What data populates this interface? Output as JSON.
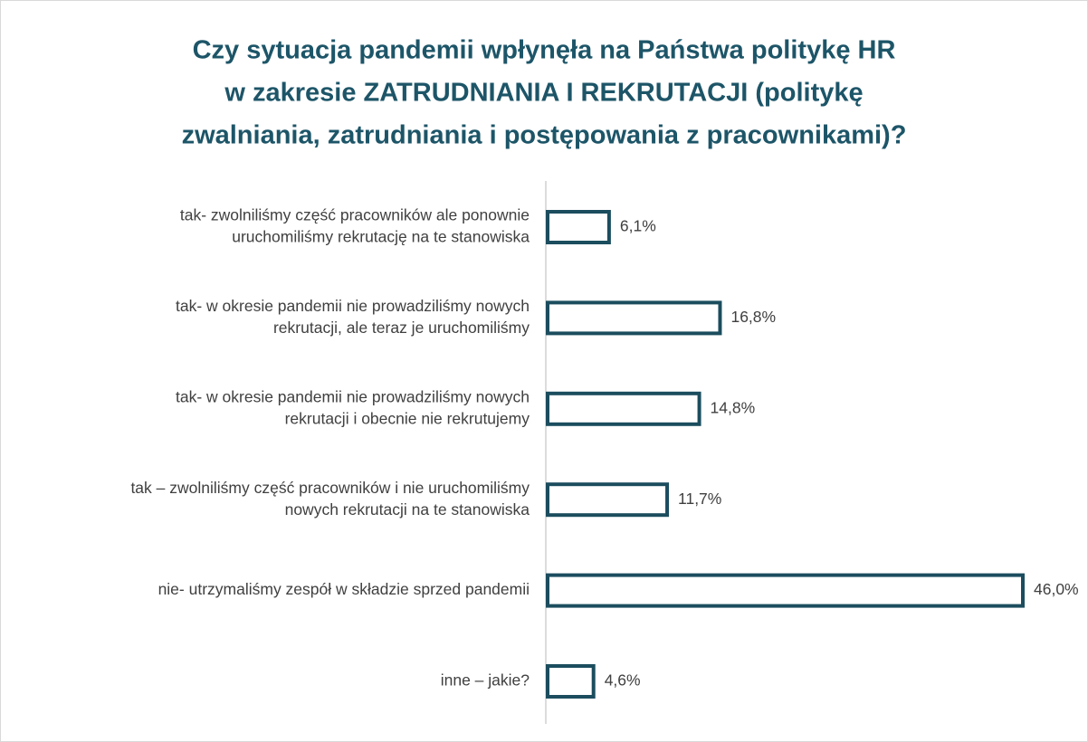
{
  "chart_data": {
    "type": "barh",
    "title": [
      "Czy sytuacja pandemii wpłynęła na Państwa politykę HR",
      "w zakresie ZATRUDNIANIA I REKRUTACJI (politykę",
      "zwalniania, zatrudniania i postępowania z pracownikami)?"
    ],
    "categories": [
      [
        "tak- zwolniliśmy część pracowników ale ponownie",
        "uruchomiliśmy rekrutację na te stanowiska"
      ],
      [
        "tak- w okresie pandemii nie prowadziliśmy nowych",
        "rekrutacji, ale teraz je uruchomiliśmy"
      ],
      [
        "tak- w okresie pandemii nie prowadziliśmy nowych",
        "rekrutacji i obecnie nie rekrutujemy"
      ],
      [
        "tak – zwolniliśmy część pracowników i nie uruchomiliśmy",
        "nowych rekrutacji na te stanowiska"
      ],
      [
        "nie- utrzymaliśmy zespół w składzie sprzed pandemii"
      ],
      [
        "inne – jakie?"
      ]
    ],
    "values": [
      6.1,
      16.8,
      14.8,
      11.7,
      46.0,
      4.6
    ],
    "value_labels": [
      "6,1%",
      "16,8%",
      "14,8%",
      "11,7%",
      "46,0%",
      "4,6%"
    ],
    "color": "#1b4d5e"
  }
}
